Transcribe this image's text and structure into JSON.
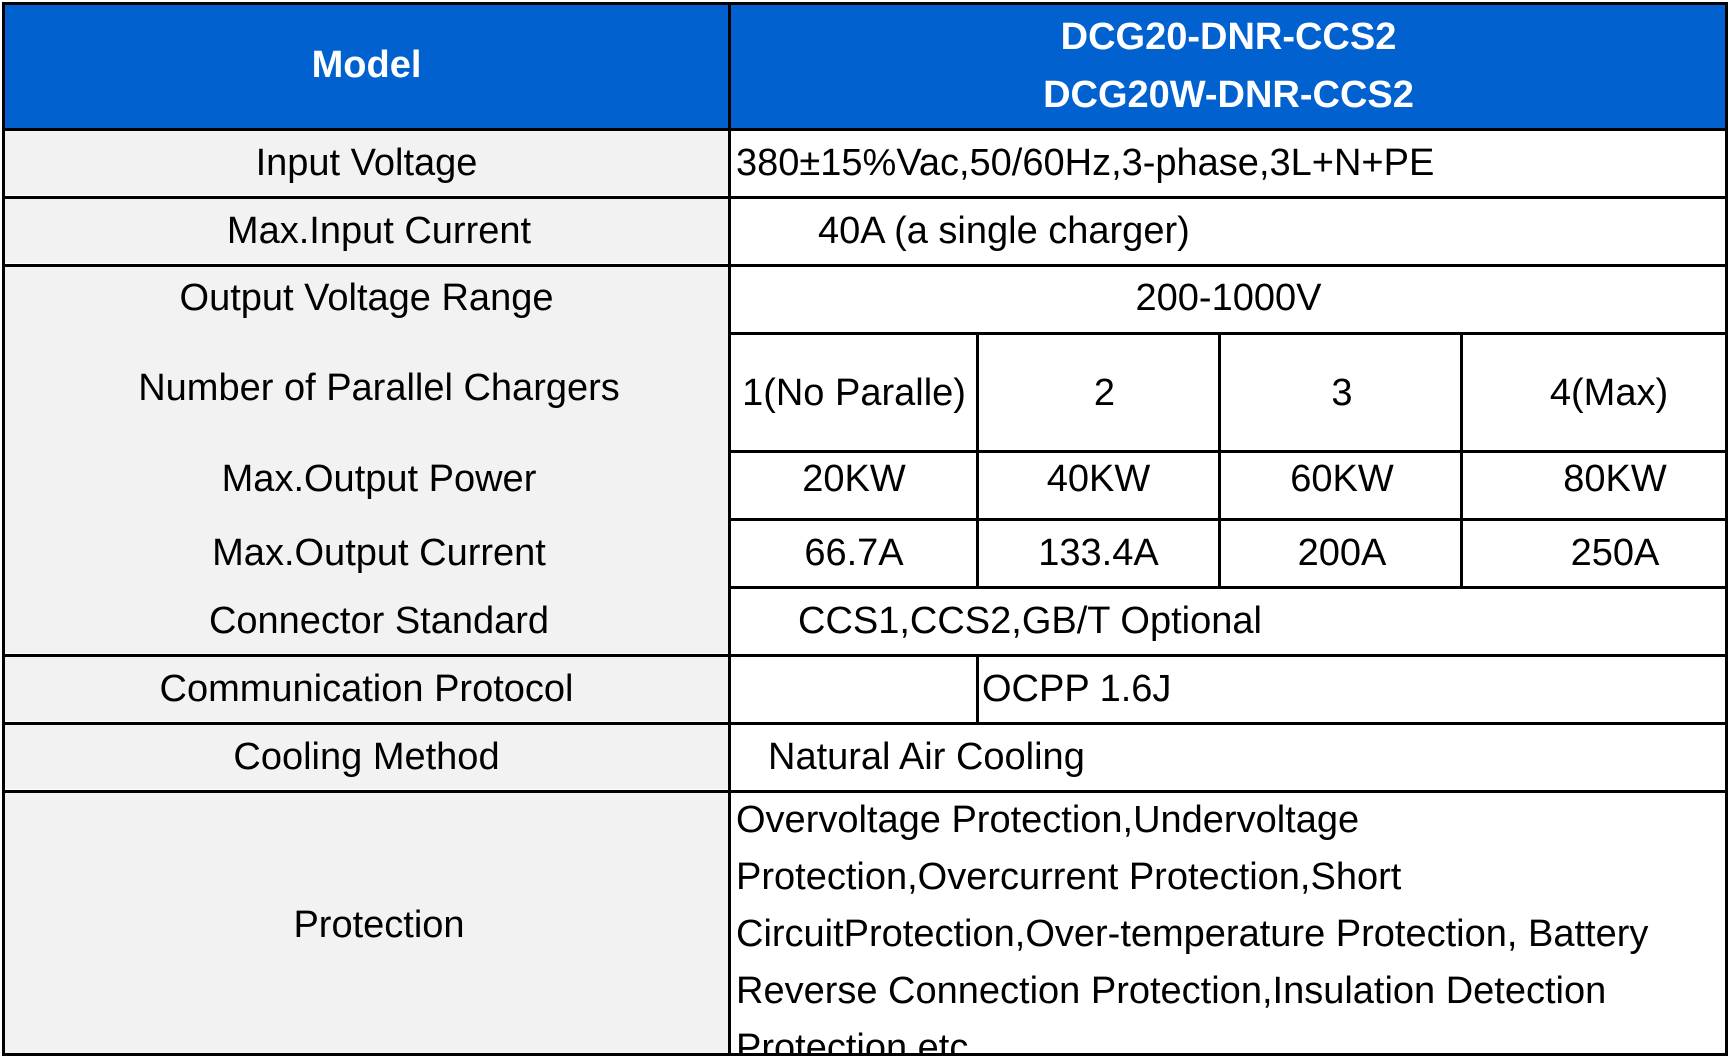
{
  "header": {
    "model_label": "Model",
    "model_names": [
      "DCG20-DNR-CCS2",
      "DCG20W-DNR-CCS2"
    ]
  },
  "rows": {
    "input_voltage": {
      "label": "Input Voltage",
      "value": "380±15%Vac,50/60Hz,3-phase,3L+N+PE"
    },
    "max_input_current": {
      "label": "Max.Input Current",
      "value": "40A (a single charger)"
    },
    "output_voltage_range": {
      "label": "Output Voltage Range",
      "value": "200-1000V"
    },
    "parallel_chargers": {
      "label": "Number of Parallel Chargers",
      "values": [
        "1(No Paralle)",
        "2",
        "3",
        "4(Max)"
      ]
    },
    "max_output_power": {
      "label": "Max.Output Power",
      "values": [
        "20KW",
        "40KW",
        "60KW",
        "80KW"
      ]
    },
    "max_output_current": {
      "label": "Max.Output Current",
      "values": [
        "66.7A",
        "133.4A",
        "200A",
        "250A"
      ]
    },
    "connector_standard": {
      "label": "Connector Standard",
      "value": "CCS1,CCS2,GB/T Optional"
    },
    "communication_protocol": {
      "label": "Communication Protocol",
      "value": "OCPP 1.6J"
    },
    "cooling_method": {
      "label": "Cooling Method",
      "value": "Natural Air Cooling"
    },
    "protection": {
      "label": "Protection",
      "lines": [
        "Overvoltage Protection,Undervoltage",
        "Protection,Overcurrent Protection,Short",
        "CircuitProtection,Over-temperature Protection, Battery",
        "Reverse Connection Protection,Insulation Detection",
        "Protection,etc."
      ]
    }
  },
  "colors": {
    "header_bg": "#0061cf",
    "header_text": "#ffffff",
    "label_bg": "#f2f2f2",
    "grid": "#000000"
  }
}
